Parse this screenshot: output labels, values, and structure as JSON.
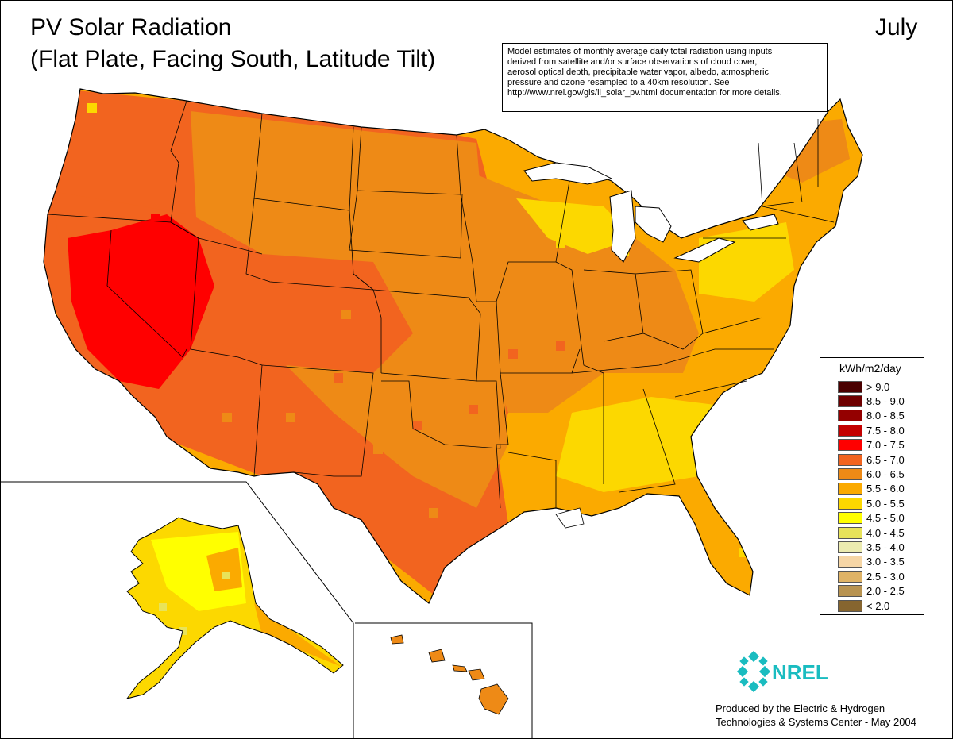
{
  "title_line1": "PV Solar Radiation",
  "title_line2": "(Flat Plate, Facing South, Latitude Tilt)",
  "month": "July",
  "note_lines": [
    "Model estimates of monthly average daily total radiation using inputs",
    "derived from satellite and/or surface observations of cloud cover,",
    "aerosol optical depth, precipitable water vapor, albedo, atmospheric",
    "pressure and ozone resampled to a 40km resolution.  See",
    "http://www.nrel.gov/gis/il_solar_pv.html documentation for more details."
  ],
  "legend": {
    "title": "kWh/m2/day",
    "items": [
      {
        "label": "> 9.0",
        "color": "#4a0000"
      },
      {
        "label": "8.5 - 9.0",
        "color": "#6e0000"
      },
      {
        "label": "8.0 - 8.5",
        "color": "#940000"
      },
      {
        "label": "7.5 - 8.0",
        "color": "#c40000"
      },
      {
        "label": "7.0 - 7.5",
        "color": "#ff0000"
      },
      {
        "label": "6.5 - 7.0",
        "color": "#f2641f"
      },
      {
        "label": "6.0 - 6.5",
        "color": "#ee8a16"
      },
      {
        "label": "5.5 - 6.0",
        "color": "#fbaa00"
      },
      {
        "label": "5.0 - 5.5",
        "color": "#fcd800"
      },
      {
        "label": "4.5 - 5.0",
        "color": "#ffff00"
      },
      {
        "label": "4.0 - 4.5",
        "color": "#e8e35a"
      },
      {
        "label": "3.5 - 4.0",
        "color": "#ecebb0"
      },
      {
        "label": "3.0 - 3.5",
        "color": "#f6d6a6"
      },
      {
        "label": "2.5 - 3.0",
        "color": "#dfb366"
      },
      {
        "label": "2.0 - 2.5",
        "color": "#b89350"
      },
      {
        "label": "< 2.0",
        "color": "#86652f"
      }
    ]
  },
  "logo_text": "NREL",
  "credit_lines": [
    "Produced by the Electric & Hydrogen",
    "Technologies & Systems Center - May 2004"
  ],
  "colors": {
    "hot": "#f2641f",
    "hottest": "#ff0000",
    "mid": "#ee8a16",
    "warm": "#fbaa00",
    "mild": "#fcd800",
    "bright": "#ffff00",
    "logo": "#1abcc0"
  }
}
